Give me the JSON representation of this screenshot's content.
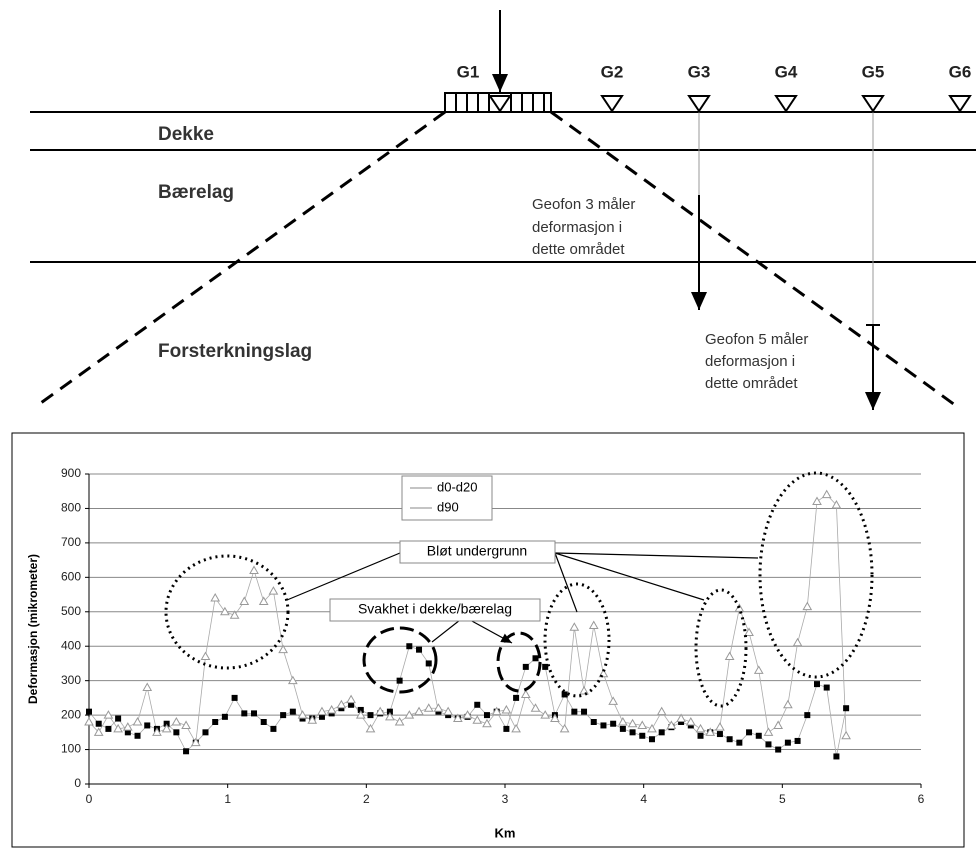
{
  "diagram": {
    "geophones": [
      "G1",
      "G2",
      "G3",
      "G4",
      "G5",
      "G6"
    ],
    "layers": [
      "Dekke",
      "Bærelag",
      "Forsterkningslag"
    ],
    "note_g3": [
      "Geofon 3 måler",
      "deformasjon i",
      "dette området"
    ],
    "note_g5": [
      "Geofon 5 måler",
      "deformasjon i",
      "dette området"
    ]
  },
  "chart_data": {
    "type": "scatter",
    "y_label": "Deformasjon (mikrometer)",
    "x_label": "Km",
    "xlim": [
      0,
      6
    ],
    "xticks": [
      0,
      1,
      2,
      3,
      4,
      5,
      6
    ],
    "ylim": [
      0,
      900
    ],
    "yticks": [
      0,
      100,
      200,
      300,
      400,
      500,
      600,
      700,
      800,
      900
    ],
    "grid": true,
    "annotations": [
      "Bløt undergrunn",
      "Svakhet i dekke/bærelag"
    ],
    "x": [
      0,
      0.07,
      0.14,
      0.21,
      0.28,
      0.35,
      0.42,
      0.49,
      0.56,
      0.63,
      0.7,
      0.77,
      0.84,
      0.91,
      0.98,
      1.05,
      1.12,
      1.19,
      1.26,
      1.33,
      1.4,
      1.47,
      1.54,
      1.61,
      1.68,
      1.75,
      1.82,
      1.89,
      1.96,
      2.03,
      2.1,
      2.17,
      2.24,
      2.31,
      2.38,
      2.45,
      2.52,
      2.59,
      2.66,
      2.73,
      2.8,
      2.87,
      2.94,
      3.01,
      3.08,
      3.15,
      3.22,
      3.29,
      3.36,
      3.43,
      3.5,
      3.57,
      3.64,
      3.71,
      3.78,
      3.85,
      3.92,
      3.99,
      4.06,
      4.13,
      4.2,
      4.27,
      4.34,
      4.41,
      4.48,
      4.55,
      4.62,
      4.69,
      4.76,
      4.83,
      4.9,
      4.97,
      5.04,
      5.11,
      5.18,
      5.25,
      5.32,
      5.39,
      5.46
    ],
    "series": [
      {
        "name": "d0-d20",
        "color": "#000000",
        "values": [
          210,
          175,
          160,
          190,
          150,
          140,
          170,
          160,
          175,
          150,
          95,
          120,
          150,
          180,
          195,
          250,
          205,
          205,
          180,
          160,
          200,
          210,
          190,
          190,
          195,
          205,
          220,
          230,
          215,
          200,
          205,
          210,
          300,
          400,
          390,
          350,
          210,
          200,
          190,
          195,
          230,
          200,
          210,
          160,
          250,
          340,
          365,
          340,
          200,
          260,
          210,
          210,
          180,
          170,
          175,
          160,
          150,
          140,
          130,
          150,
          165,
          180,
          170,
          140,
          150,
          145,
          130,
          120,
          150,
          140,
          115,
          100,
          120,
          125,
          200,
          290,
          280,
          80,
          220
        ]
      },
      {
        "name": "d90",
        "color": "#999999",
        "values": [
          180,
          150,
          200,
          160,
          165,
          180,
          280,
          150,
          160,
          180,
          170,
          120,
          370,
          540,
          500,
          490,
          530,
          620,
          530,
          560,
          390,
          300,
          200,
          185,
          210,
          215,
          230,
          245,
          200,
          160,
          210,
          195,
          180,
          200,
          210,
          220,
          220,
          210,
          190,
          200,
          185,
          175,
          210,
          215,
          160,
          260,
          220,
          200,
          190,
          160,
          455,
          270,
          460,
          320,
          240,
          180,
          175,
          170,
          160,
          210,
          170,
          190,
          180,
          160,
          150,
          165,
          370,
          510,
          440,
          330,
          150,
          170,
          230,
          410,
          515,
          820,
          840,
          810,
          140
        ]
      }
    ]
  }
}
